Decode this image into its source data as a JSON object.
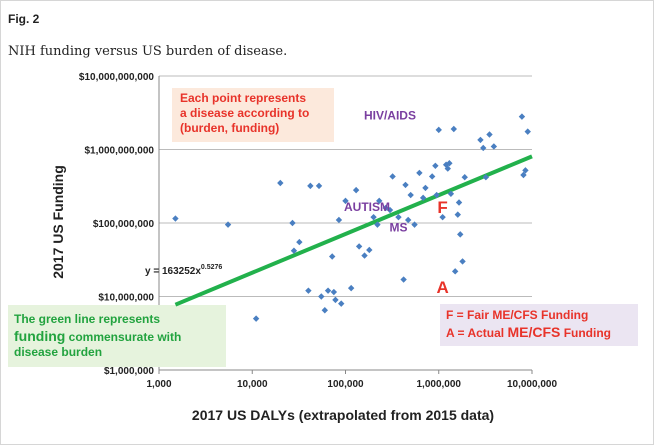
{
  "figure": {
    "label": "Fig. 2",
    "caption": "NIH funding versus US burden of disease."
  },
  "colors": {
    "points": "#4a7fc1",
    "trend_line": "#22b14c",
    "axis": "#888888",
    "grid": "#bbbbbb",
    "red": "#e8332a",
    "purple": "#7a3fa0",
    "annotation_box_peach": "#fce9dc",
    "annotation_box_green": "#e6f3dd",
    "annotation_box_lavender": "#ebe5f2"
  },
  "chart_data": {
    "type": "scatter",
    "xlabel": "2017 US DALYs (extrapolated from 2015 data)",
    "ylabel": "2017 US Funding",
    "xscale": "log",
    "yscale": "log",
    "xlim": [
      1000,
      10000000
    ],
    "ylim": [
      1000000,
      10000000000
    ],
    "grid": "horizontal",
    "x_ticks": [
      "1,000",
      "10,000",
      "100,000",
      "1,000,000",
      "10,000,000"
    ],
    "y_ticks": [
      "$1,000,000",
      "$10,000,000",
      "$100,000,000",
      "$1,000,000,000",
      "$10,000,000,000"
    ],
    "series": [
      {
        "points": [
          [
            1500,
            115000000
          ],
          [
            5500,
            95000000
          ],
          [
            11000,
            5000000
          ],
          [
            20000,
            350000000
          ],
          [
            27000,
            100000000
          ],
          [
            28000,
            42000000
          ],
          [
            32000,
            55000000
          ],
          [
            40000,
            12000000
          ],
          [
            42000,
            320000000
          ],
          [
            52000,
            320000000
          ],
          [
            55000,
            10000000
          ],
          [
            60000,
            6500000
          ],
          [
            65000,
            12000000
          ],
          [
            72000,
            35000000
          ],
          [
            75000,
            11500000
          ],
          [
            78000,
            9000000
          ],
          [
            85000,
            110000000
          ],
          [
            90000,
            8000000
          ],
          [
            100000,
            200000000
          ],
          [
            115000,
            13000000
          ],
          [
            130000,
            280000000
          ],
          [
            140000,
            48000000
          ],
          [
            160000,
            36000000
          ],
          [
            180000,
            43000000
          ],
          [
            200000,
            120000000
          ],
          [
            220000,
            95000000
          ],
          [
            230000,
            200000000
          ],
          [
            270000,
            160000000
          ],
          [
            300000,
            150000000
          ],
          [
            320000,
            430000000
          ],
          [
            370000,
            120000000
          ],
          [
            420000,
            17000000
          ],
          [
            440000,
            330000000
          ],
          [
            470000,
            110000000
          ],
          [
            500000,
            240000000
          ],
          [
            550000,
            95000000
          ],
          [
            620000,
            480000000
          ],
          [
            680000,
            220000000
          ],
          [
            720000,
            300000000
          ],
          [
            850000,
            430000000
          ],
          [
            920000,
            600000000
          ],
          [
            950000,
            240000000
          ],
          [
            1000000,
            1850000000
          ],
          [
            1100000,
            120000000
          ],
          [
            1200000,
            620000000
          ],
          [
            1250000,
            550000000
          ],
          [
            1300000,
            650000000
          ],
          [
            1350000,
            250000000
          ],
          [
            1450000,
            1900000000
          ],
          [
            1500000,
            22000000
          ],
          [
            1600000,
            130000000
          ],
          [
            1650000,
            190000000
          ],
          [
            1700000,
            70000000
          ],
          [
            1800000,
            30000000
          ],
          [
            1900000,
            420000000
          ],
          [
            2800000,
            1350000000
          ],
          [
            3000000,
            1050000000
          ],
          [
            3200000,
            420000000
          ],
          [
            3500000,
            1600000000
          ],
          [
            3900000,
            1100000000
          ],
          [
            7800000,
            2800000000
          ],
          [
            8100000,
            450000000
          ],
          [
            8500000,
            520000000
          ],
          [
            9000000,
            1750000000
          ]
        ]
      }
    ],
    "trendline": {
      "equation": "y = 163252x",
      "exponent": "0.5276",
      "coefficient": 163252,
      "power": 0.5276
    },
    "markers": [
      {
        "label": "F",
        "x": 1100000,
        "y": 170000000
      },
      {
        "label": "A",
        "x": 1100000,
        "y": 14000000
      }
    ],
    "labels": [
      {
        "text": "HIV/AIDS",
        "x": 300000,
        "y": 3000000000
      },
      {
        "text": "AUTISM",
        "x": 170000,
        "y": 170000000
      },
      {
        "text": "MS",
        "x": 370000,
        "y": 90000000
      }
    ]
  },
  "annotations": {
    "top_left": [
      "Each point represents",
      "a disease according to",
      "(burden, funding)"
    ],
    "bottom_left_line1": "The green line represents",
    "bottom_left_emph": "funding",
    "bottom_left_line2_rest": " commensurate with",
    "bottom_left_line3": "disease burden",
    "legend_f": "F = Fair ME/CFS Funding",
    "legend_a_prefix": "A = Actual ",
    "legend_a_emph": "ME/CFS",
    "legend_a_suffix": " Funding"
  }
}
